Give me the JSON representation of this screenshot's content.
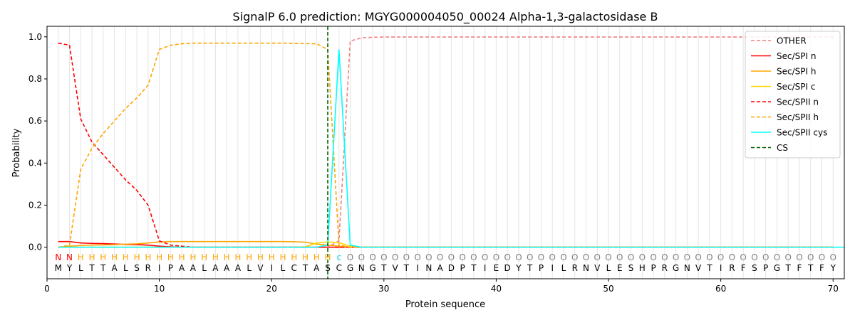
{
  "chart_data": {
    "type": "line",
    "title": "SignalP 6.0 prediction: MGYG000004050_00024 Alpha-1,3-galactosidase B",
    "xlabel": "Protein sequence",
    "ylabel": "Probability",
    "xlim": [
      0,
      71
    ],
    "ylim": [
      -0.15,
      1.05
    ],
    "xticks": [
      0,
      10,
      20,
      30,
      40,
      50,
      60,
      70
    ],
    "yticks": [
      0.0,
      0.2,
      0.4,
      0.6,
      0.8,
      1.0
    ],
    "grid": "vertical lines at each residue",
    "legend_position": "top-right",
    "sequence": [
      "M",
      "Y",
      "L",
      "T",
      "T",
      "A",
      "L",
      "S",
      "R",
      "I",
      "P",
      "A",
      "A",
      "L",
      "A",
      "A",
      "A",
      "L",
      "V",
      "I",
      "L",
      "C",
      "T",
      "A",
      "S",
      "C",
      "G",
      "N",
      "G",
      "T",
      "V",
      "T",
      "I",
      "N",
      "A",
      "D",
      "P",
      "T",
      "I",
      "E",
      "D",
      "Y",
      "T",
      "P",
      "I",
      "L",
      "R",
      "N",
      "V",
      "L",
      "E",
      "S",
      "H",
      "P",
      "R",
      "G",
      "N",
      "V",
      "T",
      "I",
      "R",
      "F",
      "S",
      "P",
      "G",
      "T",
      "F",
      "T",
      "F",
      "Y"
    ],
    "region_labels": [
      "N",
      "N",
      "H",
      "H",
      "H",
      "H",
      "H",
      "H",
      "H",
      "H",
      "H",
      "H",
      "H",
      "H",
      "H",
      "H",
      "H",
      "H",
      "H",
      "H",
      "H",
      "H",
      "H",
      "H",
      "H",
      "c",
      "O",
      "O",
      "O",
      "O",
      "O",
      "O",
      "O",
      "O",
      "O",
      "O",
      "O",
      "O",
      "O",
      "O",
      "O",
      "O",
      "O",
      "O",
      "O",
      "O",
      "O",
      "O",
      "O",
      "O",
      "O",
      "O",
      "O",
      "O",
      "O",
      "O",
      "O",
      "O",
      "O",
      "O",
      "O",
      "O",
      "O",
      "O",
      "O",
      "O",
      "O",
      "O",
      "O",
      "O"
    ],
    "region_colors": {
      "N": "#ff0000",
      "H": "#ffa500",
      "c": "#00d8e8",
      "O": "#808080"
    },
    "cleavage_site": 25,
    "series": [
      {
        "name": "OTHER",
        "color": "#f08080",
        "dash": "dashed",
        "values": [
          0,
          0,
          0,
          0,
          0,
          0,
          0,
          0,
          0,
          0,
          0,
          0,
          0,
          0,
          0,
          0,
          0,
          0,
          0,
          0,
          0,
          0,
          0,
          0,
          0,
          0.03,
          0.98,
          0.995,
          0.998,
          0.999,
          0.999,
          0.999,
          0.999,
          0.999,
          0.999,
          0.999,
          0.999,
          0.999,
          0.999,
          0.999,
          0.999,
          0.999,
          0.999,
          0.999,
          0.999,
          0.999,
          0.999,
          0.999,
          0.999,
          0.999,
          0.999,
          0.999,
          0.999,
          0.999,
          0.999,
          0.999,
          0.999,
          0.999,
          0.999,
          0.999,
          0.999,
          0.999,
          0.999,
          0.999,
          0.999,
          0.999,
          0.999,
          0.999,
          0.999,
          0.999
        ]
      },
      {
        "name": "Sec/SPI n",
        "color": "#ff0000",
        "dash": "solid",
        "values": [
          0.027,
          0.027,
          0.02,
          0.018,
          0.017,
          0.015,
          0.013,
          0.012,
          0.01,
          0.005,
          0.002,
          0,
          0,
          0,
          0,
          0,
          0,
          0,
          0,
          0,
          0,
          0,
          0,
          0,
          0,
          0,
          0,
          0,
          0,
          0,
          0,
          0,
          0,
          0,
          0,
          0,
          0,
          0,
          0,
          0,
          0,
          0,
          0,
          0,
          0,
          0,
          0,
          0,
          0,
          0,
          0,
          0,
          0,
          0,
          0,
          0,
          0,
          0,
          0,
          0,
          0,
          0,
          0,
          0,
          0,
          0,
          0,
          0,
          0,
          0
        ]
      },
      {
        "name": "Sec/SPI h",
        "color": "#ffa500",
        "dash": "solid",
        "values": [
          0,
          0.005,
          0.008,
          0.01,
          0.011,
          0.012,
          0.014,
          0.016,
          0.02,
          0.025,
          0.027,
          0.027,
          0.027,
          0.027,
          0.027,
          0.027,
          0.027,
          0.027,
          0.027,
          0.027,
          0.027,
          0.026,
          0.024,
          0.015,
          0.01,
          0.005,
          0,
          0,
          0,
          0,
          0,
          0,
          0,
          0,
          0,
          0,
          0,
          0,
          0,
          0,
          0,
          0,
          0,
          0,
          0,
          0,
          0,
          0,
          0,
          0,
          0,
          0,
          0,
          0,
          0,
          0,
          0,
          0,
          0,
          0,
          0,
          0,
          0,
          0,
          0,
          0,
          0,
          0,
          0,
          0
        ]
      },
      {
        "name": "Sec/SPI c",
        "color": "#ffd700",
        "dash": "solid",
        "values": [
          0,
          0,
          0,
          0,
          0,
          0,
          0,
          0,
          0,
          0,
          0,
          0,
          0,
          0,
          0,
          0,
          0,
          0,
          0,
          0,
          0,
          0,
          0.002,
          0.02,
          0.025,
          0.022,
          0.005,
          0,
          0,
          0,
          0,
          0,
          0,
          0,
          0,
          0,
          0,
          0,
          0,
          0,
          0,
          0,
          0,
          0,
          0,
          0,
          0,
          0,
          0,
          0,
          0,
          0,
          0,
          0,
          0,
          0,
          0,
          0,
          0,
          0,
          0,
          0,
          0,
          0,
          0,
          0,
          0,
          0,
          0,
          0
        ]
      },
      {
        "name": "Sec/SPII n",
        "color": "#ff0000",
        "dash": "dashed",
        "values": [
          0.97,
          0.96,
          0.61,
          0.5,
          0.44,
          0.38,
          0.32,
          0.27,
          0.2,
          0.03,
          0.01,
          0.005,
          0,
          0,
          0,
          0,
          0,
          0,
          0,
          0,
          0,
          0,
          0,
          0,
          0,
          0,
          0,
          0,
          0,
          0,
          0,
          0,
          0,
          0,
          0,
          0,
          0,
          0,
          0,
          0,
          0,
          0,
          0,
          0,
          0,
          0,
          0,
          0,
          0,
          0,
          0,
          0,
          0,
          0,
          0,
          0,
          0,
          0,
          0,
          0,
          0,
          0,
          0,
          0,
          0,
          0,
          0,
          0,
          0,
          0
        ]
      },
      {
        "name": "Sec/SPII h",
        "color": "#ffa500",
        "dash": "dashed",
        "values": [
          0,
          0.01,
          0.37,
          0.47,
          0.54,
          0.6,
          0.66,
          0.71,
          0.77,
          0.94,
          0.96,
          0.967,
          0.97,
          0.97,
          0.97,
          0.97,
          0.97,
          0.97,
          0.97,
          0.97,
          0.97,
          0.969,
          0.968,
          0.967,
          0.94,
          0.01,
          0,
          0,
          0,
          0,
          0,
          0,
          0,
          0,
          0,
          0,
          0,
          0,
          0,
          0,
          0,
          0,
          0,
          0,
          0,
          0,
          0,
          0,
          0,
          0,
          0,
          0,
          0,
          0,
          0,
          0,
          0,
          0,
          0,
          0,
          0,
          0,
          0,
          0,
          0,
          0,
          0,
          0,
          0,
          0
        ]
      },
      {
        "name": "Sec/SPII cys",
        "color": "#00ffff",
        "dash": "solid",
        "values": [
          0,
          0,
          0,
          0,
          0,
          0,
          0,
          0,
          0,
          0,
          0,
          0,
          0,
          0,
          0,
          0,
          0,
          0,
          0,
          0,
          0,
          0,
          0,
          0,
          0.01,
          0.94,
          0.01,
          0,
          0,
          0,
          0,
          0,
          0,
          0,
          0,
          0,
          0,
          0,
          0,
          0,
          0,
          0,
          0,
          0,
          0,
          0,
          0,
          0,
          0,
          0,
          0,
          0,
          0,
          0,
          0,
          0,
          0,
          0,
          0,
          0,
          0,
          0,
          0,
          0,
          0,
          0,
          0,
          0,
          0,
          0,
          0
        ]
      },
      {
        "name": "CS",
        "color": "#006400",
        "dash": "dashed",
        "values": []
      }
    ]
  }
}
